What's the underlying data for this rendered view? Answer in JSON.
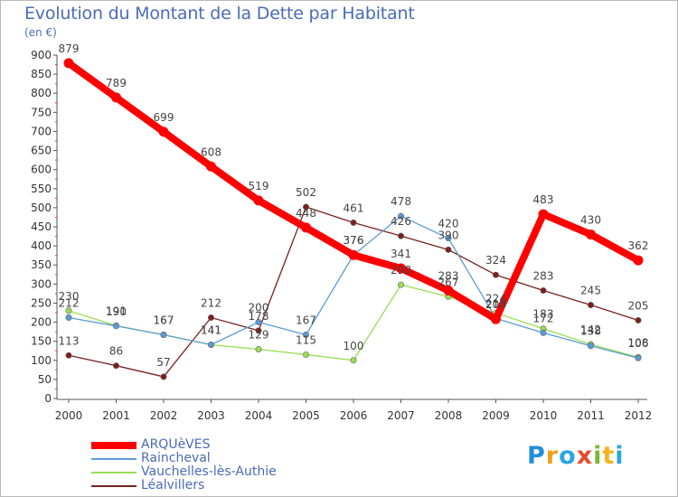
{
  "title": "Evolution du Montant de la Dette par Habitant",
  "subtitle": "(en €)",
  "logo": {
    "text": "Proxiti",
    "letters": [
      {
        "ch": "P",
        "color": "#1f8fd8"
      },
      {
        "ch": "r",
        "color": "#f0a11c"
      },
      {
        "ch": "o",
        "color": "#2aa6e0"
      },
      {
        "ch": "x",
        "color": "#e84c2c"
      },
      {
        "ch": "i",
        "color": "#7ab833"
      },
      {
        "ch": "t",
        "color": "#f4b41a"
      },
      {
        "ch": "i",
        "color": "#2aa6e0"
      }
    ]
  },
  "chart_data": {
    "type": "line",
    "title": "Evolution du Montant de la Dette par Habitant",
    "ylabel": "(en €)",
    "xlabel": "",
    "x": [
      "2000",
      "2001",
      "2002",
      "2003",
      "2004",
      "2005",
      "2006",
      "2007",
      "2008",
      "2009",
      "2010",
      "2011",
      "2012"
    ],
    "yticks": [
      "0",
      "50",
      "100",
      "150",
      "200",
      "250",
      "300",
      "350",
      "400",
      "450",
      "500",
      "550",
      "600",
      "650",
      "700",
      "750",
      "800",
      "850",
      "900"
    ],
    "ylim": [
      0,
      900
    ],
    "grid": false,
    "legend_position": "bottom-left",
    "series": [
      {
        "name": "ARQUèVES",
        "color": "#ff0000",
        "values": [
          879,
          789,
          699,
          608,
          519,
          448,
          376,
          341,
          283,
          208,
          483,
          430,
          362
        ]
      },
      {
        "name": "Raincheval",
        "color": "#5b9bd5",
        "values": [
          212,
          190,
          167,
          141,
          200,
          167,
          376,
          478,
          420,
          210,
          172,
          138,
          106
        ]
      },
      {
        "name": "Vauchelles-lès-Authie",
        "color": "#99dd55",
        "values": [
          230,
          191,
          167,
          141,
          129,
          115,
          100,
          298,
          267,
          224,
          183,
          142,
          108
        ]
      },
      {
        "name": "Léalvillers",
        "color": "#7a2020",
        "values": [
          113,
          86,
          57,
          212,
          178,
          502,
          461,
          426,
          390,
          324,
          283,
          245,
          205
        ]
      }
    ]
  }
}
